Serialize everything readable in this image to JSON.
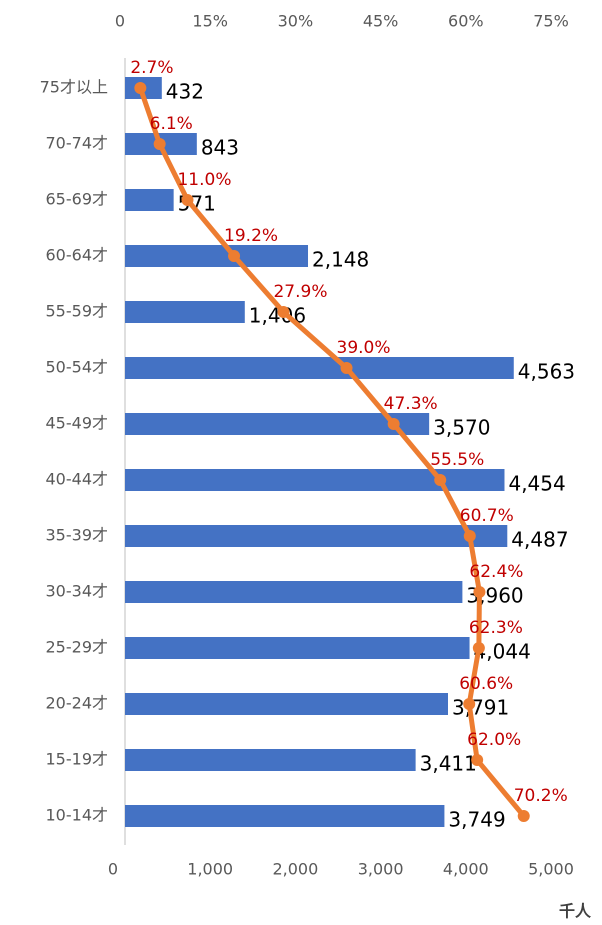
{
  "chart_data": {
    "type": "bar",
    "orientation": "horizontal",
    "categories": [
      "75才以上",
      "70-74才",
      "65-69才",
      "60-64才",
      "55-59才",
      "50-54才",
      "45-49才",
      "40-44才",
      "35-39才",
      "30-34才",
      "25-29才",
      "20-24才",
      "15-19才",
      "10-14才"
    ],
    "series": [
      {
        "color": "#4472C4",
        "values": [
          432,
          843,
          571,
          2148,
          1406,
          4563,
          3570,
          4454,
          4487,
          3960,
          4044,
          3791,
          3411,
          3749
        ],
        "value_labels": [
          "432",
          "843",
          "571",
          "2,148",
          "1,406",
          "4,563",
          "3,570",
          "4,454",
          "4,487",
          "3,960",
          "4,044",
          "3,791",
          "3,411",
          "3,749"
        ]
      },
      {
        "type": "line",
        "axis": "x2",
        "color": "#ED7D31",
        "values": [
          2.7,
          6.1,
          11.0,
          19.2,
          27.9,
          39.0,
          47.3,
          55.5,
          60.7,
          62.4,
          62.3,
          60.6,
          62.0,
          70.2
        ],
        "value_labels": [
          "2.7%",
          "6.1%",
          "11.0%",
          "19.2%",
          "27.9%",
          "39.0%",
          "47.3%",
          "55.5%",
          "60.7%",
          "62.4%",
          "62.3%",
          "60.6%",
          "62.0%",
          "70.2%"
        ]
      }
    ],
    "xlim": [
      0,
      5000
    ],
    "xticks": [
      0,
      {
        "value": 1000,
        "label": "1,000"
      },
      {
        "value": 2000,
        "label": "2,000"
      },
      {
        "value": 3000,
        "label": "3,000"
      },
      {
        "value": 4000,
        "label": "4,000"
      },
      {
        "value": 5000,
        "label": "5,000"
      }
    ],
    "x2lim": [
      0,
      75
    ],
    "x2ticks": [
      0,
      {
        "value": 15,
        "label": "15%"
      },
      {
        "value": 30,
        "label": "30%"
      },
      {
        "value": 45,
        "label": "45%"
      },
      {
        "value": 60,
        "label": "60%"
      },
      {
        "value": 75,
        "label": "75%"
      }
    ],
    "xlabel": "千人",
    "grid": false
  }
}
